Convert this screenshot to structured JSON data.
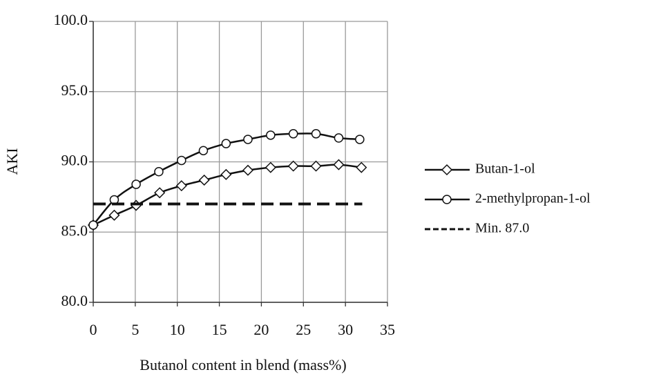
{
  "chart_data": {
    "type": "line",
    "xlabel": "Butanol content in blend (mass%)",
    "ylabel": "AKI",
    "xlim": [
      0,
      35
    ],
    "xticks": [
      0,
      5,
      10,
      15,
      20,
      25,
      30,
      35
    ],
    "ylim": [
      80,
      100
    ],
    "yticks": [
      {
        "value": 80,
        "label": "80.0"
      },
      {
        "value": 85,
        "label": "85.0"
      },
      {
        "value": 90,
        "label": "90.0"
      },
      {
        "value": 95,
        "label": "95.0"
      },
      {
        "value": 100,
        "label": "100.0"
      }
    ],
    "grid": true,
    "legend": "right",
    "series": [
      {
        "name": "Butan-1-ol",
        "color": "#111111",
        "marker": "diamond",
        "line": "solid",
        "x": [
          0,
          2.5,
          5.1,
          7.9,
          10.5,
          13.2,
          15.8,
          18.4,
          21.1,
          23.8,
          26.5,
          29.2,
          31.9
        ],
        "values": [
          85.5,
          86.2,
          86.9,
          87.8,
          88.3,
          88.7,
          89.1,
          89.4,
          89.6,
          89.7,
          89.7,
          89.8,
          89.6
        ]
      },
      {
        "name": "2-methylpropan-1-ol",
        "color": "#111111",
        "marker": "circle",
        "line": "solid",
        "x": [
          0,
          2.5,
          5.1,
          7.8,
          10.5,
          13.1,
          15.8,
          18.4,
          21.1,
          23.8,
          26.5,
          29.2,
          31.7
        ],
        "values": [
          85.5,
          87.3,
          88.4,
          89.3,
          90.1,
          90.8,
          91.3,
          91.6,
          91.9,
          92.0,
          92.0,
          91.7,
          91.6
        ]
      },
      {
        "name": "Min. 87.0",
        "color": "#111111",
        "marker": "none",
        "line": "dashed",
        "x": [
          0,
          32
        ],
        "values": [
          87,
          87
        ]
      }
    ]
  }
}
